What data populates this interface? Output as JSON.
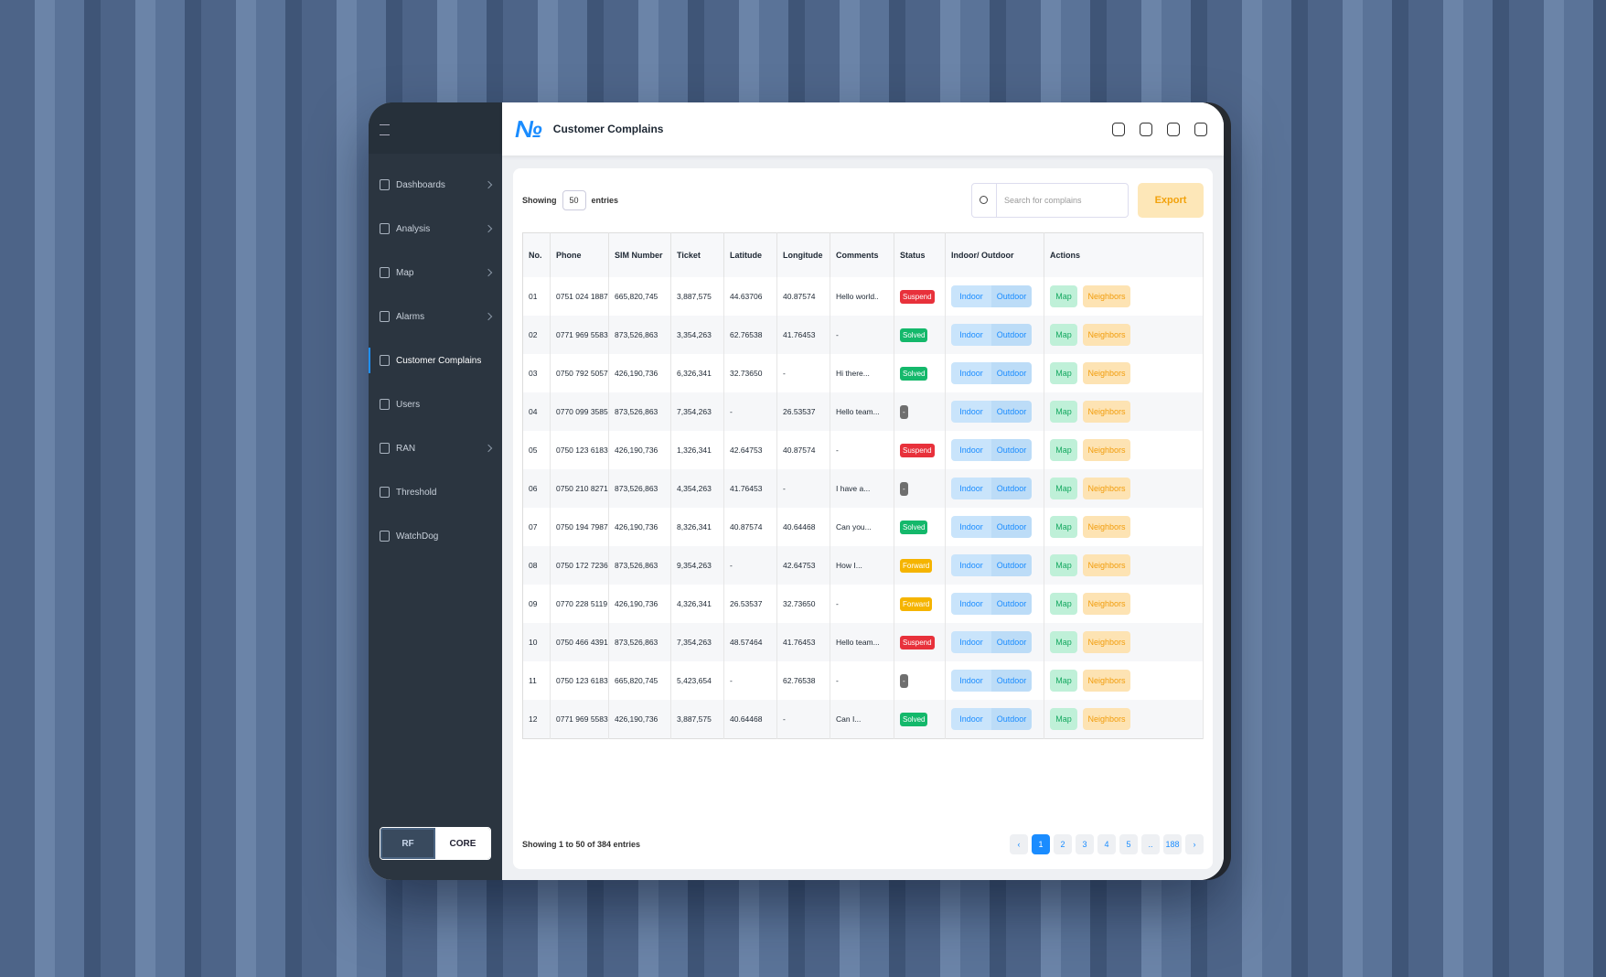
{
  "sidebar": {
    "items": [
      {
        "label": "Dashboards",
        "submenu": true
      },
      {
        "label": "Analysis",
        "submenu": true
      },
      {
        "label": "Map",
        "submenu": true
      },
      {
        "label": "Alarms",
        "submenu": true
      },
      {
        "label": "Customer Complains",
        "active": true
      },
      {
        "label": "Users"
      },
      {
        "label": "RAN",
        "submenu": true
      },
      {
        "label": "Threshold"
      },
      {
        "label": "WatchDog"
      }
    ],
    "toggle": [
      "RF",
      "CORE"
    ]
  },
  "header": {
    "title": "Customer Complains"
  },
  "toolbar": {
    "showing": "Showing",
    "page_size": "50",
    "entries": "entries",
    "search_placeholder": "Search for complains",
    "export": "Export"
  },
  "table": {
    "columns": [
      "No.",
      "Phone",
      "SIM Number",
      "Ticket",
      "Latitude",
      "Longitude",
      "Comments",
      "Status",
      "Indoor/ Outdoor",
      "Actions"
    ],
    "actions": [
      "Indoor",
      "Outdoor",
      "Map",
      "Neighbors"
    ],
    "rows": [
      [
        "01",
        "0751 024 1887",
        "665,820,745",
        "3,887,575",
        "44.63706",
        "40.87574",
        "Hello world..",
        "Suspend"
      ],
      [
        "02",
        "0771 969 5583",
        "873,526,863",
        "3,354,263",
        "62.76538",
        "41.76453",
        "-",
        "Solved"
      ],
      [
        "03",
        "0750 792 5057",
        "426,190,736",
        "6,326,341",
        "32.73650",
        "-",
        "Hi there...",
        "Solved"
      ],
      [
        "04",
        "0770 099 3585",
        "873,526,863",
        "7,354,263",
        "-",
        "26.53537",
        "Hello team...",
        "-"
      ],
      [
        "05",
        "0750 123 6183",
        "426,190,736",
        "1,326,341",
        "42.64753",
        "40.87574",
        "-",
        "Suspend"
      ],
      [
        "06",
        "0750 210 8271",
        "873,526,863",
        "4,354,263",
        "41.76453",
        "-",
        "I have a...",
        "-"
      ],
      [
        "07",
        "0750 194 7987",
        "426,190,736",
        "8,326,341",
        "40.87574",
        "40.64468",
        "Can you...",
        "Solved"
      ],
      [
        "08",
        "0750 172 7236",
        "873,526,863",
        "9,354,263",
        "-",
        "42.64753",
        "How I...",
        "Forward"
      ],
      [
        "09",
        "0770 228 5119",
        "426,190,736",
        "4,326,341",
        "26.53537",
        "32.73650",
        "-",
        "Forward"
      ],
      [
        "10",
        "0750 466 4391",
        "873,526,863",
        "7,354,263",
        "48.57464",
        "41.76453",
        "Hello team...",
        "Suspend"
      ],
      [
        "11",
        "0750 123 6183",
        "665,820,745",
        "5,423,654",
        "-",
        "62.76538",
        "-",
        "-"
      ],
      [
        "12",
        "0771 969 5583",
        "426,190,736",
        "3,887,575",
        "40.64468",
        "-",
        "Can I...",
        "Solved"
      ]
    ],
    "status_colors": [
      "#e8313b",
      "#14b86b",
      "#14b86b",
      "#6f6f6f",
      "#e8313b",
      "#6f6f6f",
      "#14b86b",
      "#f5b400",
      "#f5b400",
      "#e8313b",
      "#6f6f6f",
      "#14b86b"
    ]
  },
  "footer": {
    "summary": "Showing 1 to 50 of 384 entries",
    "pages": [
      "1",
      "2",
      "3",
      "4",
      "5",
      "..",
      "188"
    ]
  }
}
